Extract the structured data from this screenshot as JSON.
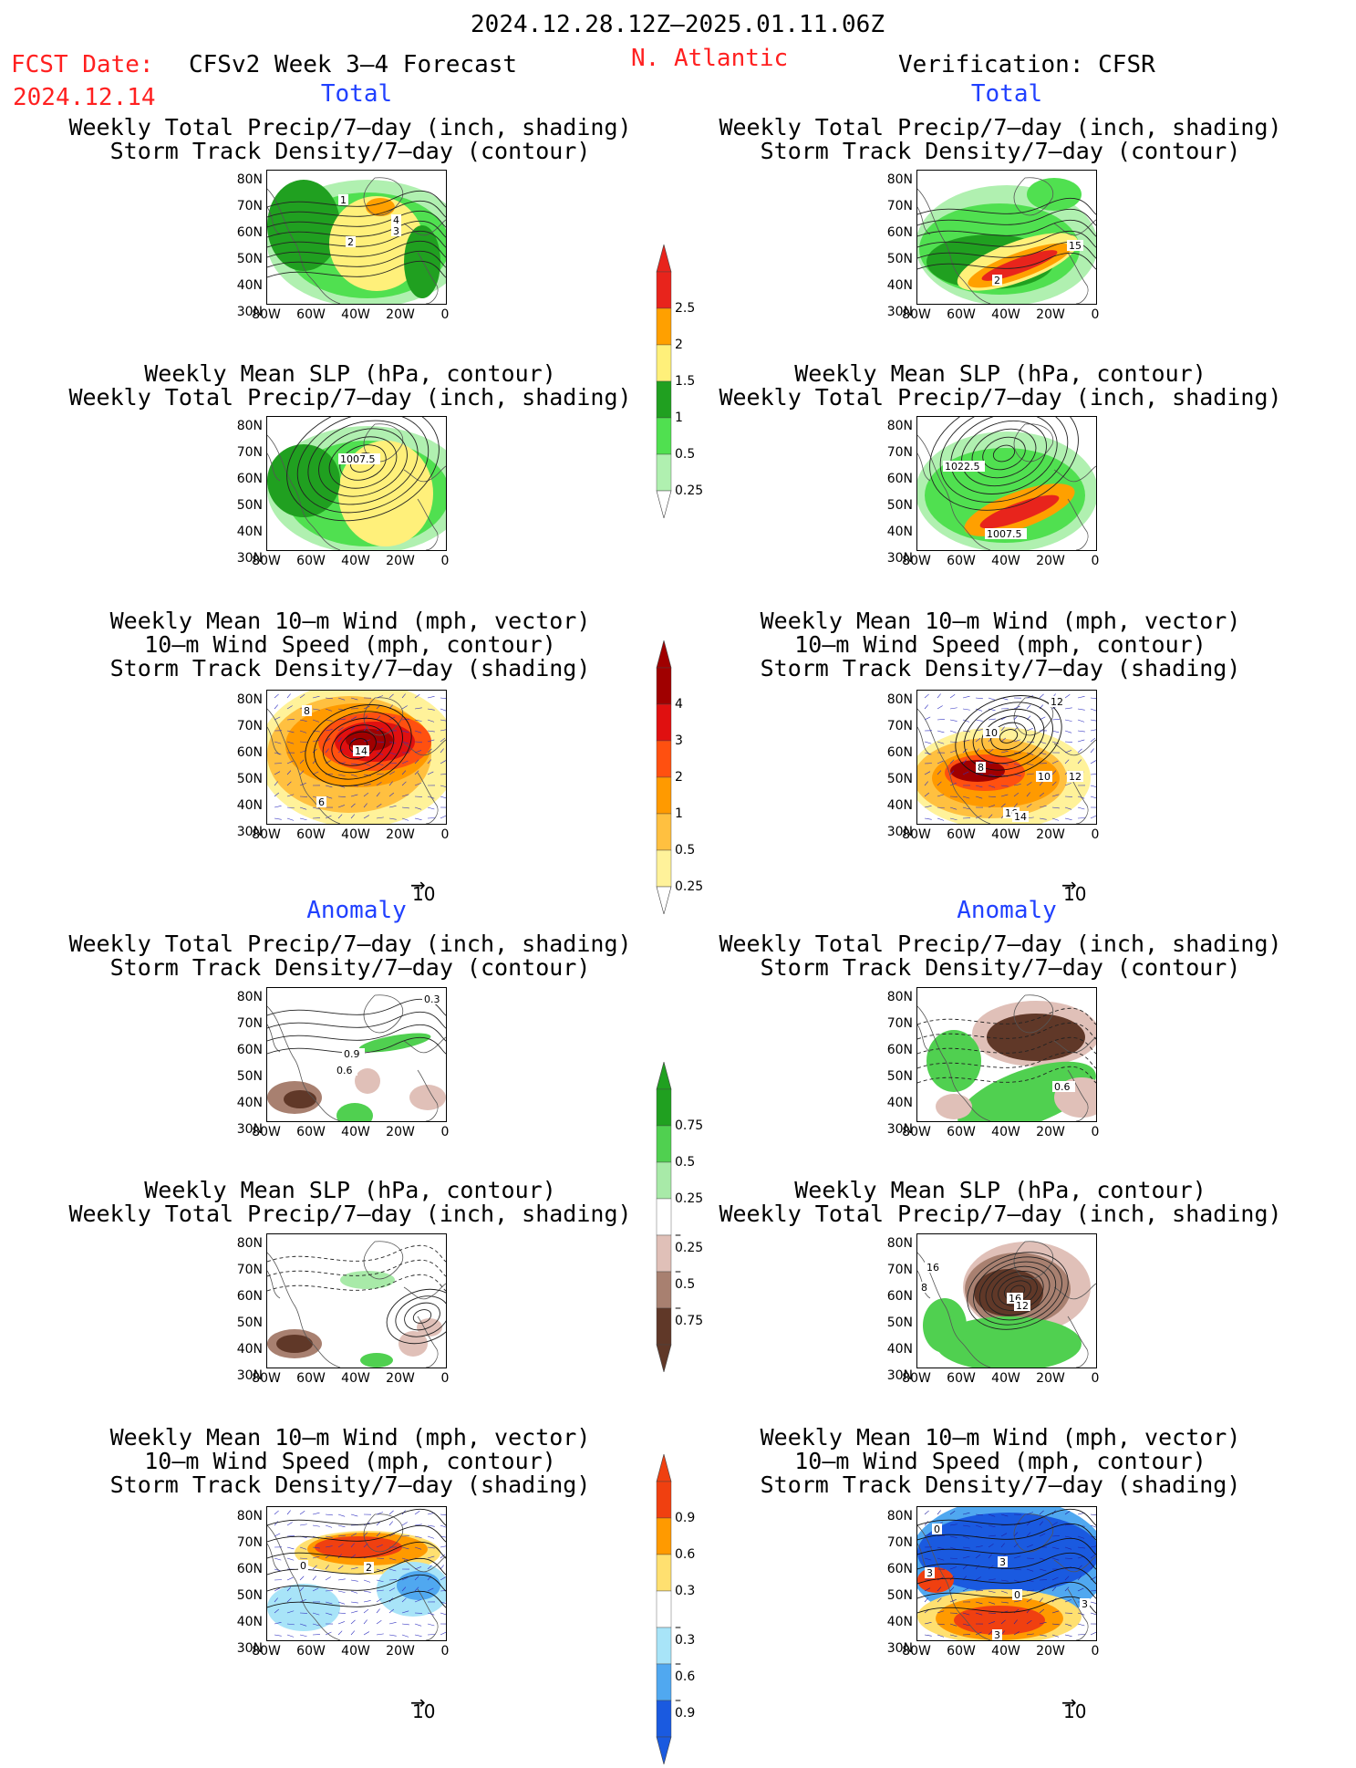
{
  "header": {
    "date_range": "2024.12.28.12Z–2025.01.11.06Z",
    "fcst_label": "FCST Date:",
    "fcst_date": "2024.12.14",
    "forecast_name": "CFSv2 Week 3–4 Forecast",
    "region": "N. Atlantic",
    "verification": "Verification: CFSR"
  },
  "section_labels": {
    "total": "Total",
    "anomaly": "Anomaly"
  },
  "titles": {
    "precip_storm": [
      "Weekly Total Precip/7–day (inch, shading)",
      "Storm Track Density/7–day (contour)"
    ],
    "slp_precip": [
      "Weekly Mean SLP (hPa, contour)",
      "Weekly Total Precip/7–day (inch, shading)"
    ],
    "wind_storm": [
      "Weekly Mean 10–m Wind (mph, vector)",
      "10–m Wind Speed (mph, contour)",
      "Storm Track Density/7–day (shading)"
    ]
  },
  "axes": {
    "lat": [
      "80N",
      "70N",
      "60N",
      "50N",
      "40N",
      "30N"
    ],
    "lon": [
      "80W",
      "60W",
      "40W",
      "20W",
      "0"
    ]
  },
  "vector_ref": "10",
  "colorbars": {
    "precip_total": {
      "levels": [
        "2.5",
        "2",
        "1.5",
        "1",
        "0.5",
        "0.25"
      ],
      "colors": [
        "#e8241c",
        "#ffa000",
        "#fff07a",
        "#20a020",
        "#50e050",
        "#b0f0b0"
      ]
    },
    "storm_total": {
      "levels": [
        "4",
        "3",
        "2",
        "1",
        "0.5",
        "0.25"
      ],
      "colors": [
        "#a00000",
        "#e01010",
        "#ff5010",
        "#ff9a00",
        "#ffc040",
        "#fff29a"
      ]
    },
    "precip_anom": {
      "levels": [
        "0.75",
        "0.5",
        "0.25",
        "–0.25",
        "–0.5",
        "–0.75"
      ],
      "colors": [
        "#20a020",
        "#50d050",
        "#a8eaa8",
        "#ffffff",
        "#e0c0b8",
        "#a88070",
        "#603828"
      ]
    },
    "storm_anom": {
      "levels": [
        "0.9",
        "0.6",
        "0.3",
        "–0.3",
        "–0.6",
        "–0.9"
      ],
      "colors": [
        "#f04010",
        "#ff9a00",
        "#ffe070",
        "#ffffff",
        "#a8e4f8",
        "#50a8f0",
        "#1a5ae0"
      ]
    }
  },
  "panel_labels": {
    "fc_total_precip": [
      "1",
      "4",
      "3",
      "2"
    ],
    "fc_total_slp": [
      "1007.5"
    ],
    "fc_total_wind": [
      "8",
      "14",
      "6"
    ],
    "ob_total_precip": [
      "15",
      "2"
    ],
    "ob_total_slp": [
      "1022.5",
      "1007.5"
    ],
    "ob_total_wind": [
      "12",
      "10",
      "8",
      "10",
      "12",
      "16",
      "14"
    ],
    "fc_anom_precip": [
      "0.3",
      "0.9",
      "0.6"
    ],
    "ob_anom_precip": [
      "0.6"
    ],
    "ob_anom_slp": [
      "16",
      "8",
      "16",
      "12"
    ],
    "fc_anom_wind": [
      "0",
      "2"
    ],
    "ob_anom_wind": [
      "0",
      "3",
      "3",
      "0",
      "3",
      "3"
    ]
  }
}
